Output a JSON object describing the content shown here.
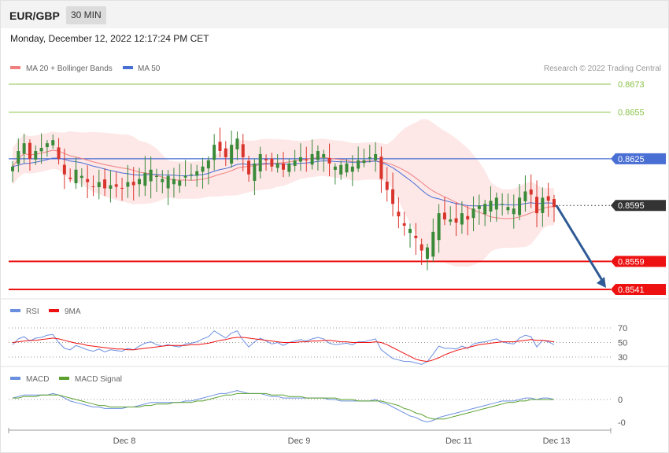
{
  "header": {
    "symbol": "EUR/GBP",
    "timeframe": "30 MIN",
    "datetime": "Monday, December 12, 2022 12:17:24 PM CET"
  },
  "legend": {
    "ma20_label": "MA 20 + Bollinger Bands",
    "ma50_label": "MA 50",
    "copyright": "Research © 2022 Trading Central"
  },
  "colors": {
    "bull": "#3a8a3a",
    "bear": "#d9342b",
    "ma20": "#f08080",
    "ma50": "#4a6fd4",
    "band_fill": "#fde3e3",
    "level_green": "#8bc34a",
    "level_blue": "#4a6fd4",
    "level_red": "#ee1111",
    "arrow": "#2e5a95",
    "rsi": "#6b8fdf",
    "rsi_ma": "#ee1111",
    "macd": "#6b8fdf",
    "macd_signal": "#5aa02c"
  },
  "levels": [
    {
      "value": 0.8673,
      "label": "0.8673",
      "kind": "green"
    },
    {
      "value": 0.8655,
      "label": "0.8655",
      "kind": "green"
    },
    {
      "value": 0.8625,
      "label": "0.8625",
      "kind": "blue"
    },
    {
      "value": 0.8595,
      "label": "0.8595",
      "kind": "current"
    },
    {
      "value": 0.8559,
      "label": "0.8559",
      "kind": "red"
    },
    {
      "value": 0.8541,
      "label": "0.8541",
      "kind": "red"
    }
  ],
  "forecast_arrow": {
    "from_price": 0.8595,
    "to_price": 0.8541
  },
  "rsi_panel": {
    "labels": {
      "rsi": "RSI",
      "ma": "9MA"
    },
    "ticks": [
      "70",
      "50",
      "30"
    ]
  },
  "macd_panel": {
    "labels": {
      "macd": "MACD",
      "signal": "MACD Signal"
    },
    "ticks": [
      "0",
      "-0"
    ]
  },
  "x_axis": {
    "labels": [
      "Dec 8",
      "Dec 9",
      "Dec 11",
      "Dec 13"
    ]
  },
  "chart_data": [
    {
      "type": "candlestick",
      "title": "EUR/GBP 30 MIN",
      "ylim": [
        0.8534,
        0.8688
      ],
      "series": [
        {
          "name": "MA 20 + Bollinger Bands"
        },
        {
          "name": "MA 50"
        }
      ],
      "price_path": [
        0.862,
        0.863,
        0.8635,
        0.8625,
        0.863,
        0.8632,
        0.8635,
        0.8637,
        0.8625,
        0.8615,
        0.8612,
        0.8618,
        0.8614,
        0.861,
        0.8607,
        0.861,
        0.8606,
        0.8608,
        0.8607,
        0.8606,
        0.861,
        0.8608,
        0.8612,
        0.8616,
        0.8618,
        0.8614,
        0.8612,
        0.8614,
        0.8612,
        0.8611,
        0.8614,
        0.8615,
        0.8617,
        0.862,
        0.8624,
        0.8634,
        0.863,
        0.8626,
        0.8634,
        0.8638,
        0.8626,
        0.8615,
        0.8622,
        0.8628,
        0.8624,
        0.862,
        0.8622,
        0.8618,
        0.8622,
        0.8624,
        0.8626,
        0.8624,
        0.8628,
        0.863,
        0.8628,
        0.8622,
        0.862,
        0.8621,
        0.8622,
        0.862,
        0.8624,
        0.8624,
        0.8626,
        0.8628,
        0.8612,
        0.8605,
        0.8596,
        0.8588,
        0.8582,
        0.858,
        0.8574,
        0.8566,
        0.8568,
        0.8578,
        0.859,
        0.8586,
        0.8586,
        0.8584,
        0.859,
        0.8586,
        0.8593,
        0.8595,
        0.8596,
        0.8598,
        0.86,
        0.8596,
        0.8594,
        0.8593,
        0.86,
        0.8604,
        0.8602,
        0.859,
        0.86,
        0.8598,
        0.8594
      ],
      "rsi": [
        47,
        55,
        58,
        52,
        56,
        57,
        60,
        61,
        50,
        42,
        40,
        46,
        43,
        40,
        38,
        41,
        37,
        40,
        39,
        38,
        42,
        40,
        45,
        49,
        51,
        47,
        45,
        47,
        45,
        44,
        48,
        49,
        51,
        55,
        58,
        66,
        61,
        56,
        63,
        66,
        53,
        44,
        51,
        56,
        52,
        48,
        50,
        46,
        50,
        52,
        54,
        52,
        55,
        57,
        55,
        49,
        47,
        48,
        49,
        47,
        51,
        51,
        53,
        55,
        40,
        34,
        28,
        26,
        24,
        24,
        22,
        20,
        24,
        34,
        45,
        42,
        42,
        41,
        45,
        42,
        48,
        50,
        51,
        53,
        55,
        51,
        49,
        48,
        56,
        60,
        58,
        44,
        53,
        51,
        47
      ],
      "rsi_ma": [
        50,
        51,
        52,
        53,
        53,
        54,
        55,
        56,
        55,
        53,
        51,
        49,
        48,
        46,
        45,
        44,
        43,
        42,
        41,
        41,
        40,
        40,
        41,
        42,
        43,
        44,
        45,
        46,
        46,
        46,
        46,
        47,
        47,
        48,
        49,
        51,
        53,
        54,
        56,
        57,
        57,
        56,
        55,
        54,
        53,
        52,
        51,
        50,
        50,
        50,
        51,
        51,
        52,
        52,
        53,
        53,
        52,
        51,
        51,
        50,
        50,
        50,
        50,
        51,
        50,
        47,
        43,
        39,
        35,
        31,
        27,
        25,
        24,
        26,
        29,
        33,
        36,
        39,
        41,
        43,
        45,
        47,
        48,
        49,
        50,
        51,
        51,
        51,
        52,
        53,
        54,
        53,
        53,
        52,
        51
      ],
      "macd": [
        0.1,
        0.2,
        0.3,
        0.3,
        0.3,
        0.3,
        0.3,
        0.4,
        0.3,
        0.1,
        -0.1,
        -0.2,
        -0.3,
        -0.4,
        -0.5,
        -0.5,
        -0.6,
        -0.6,
        -0.6,
        -0.6,
        -0.5,
        -0.5,
        -0.4,
        -0.3,
        -0.2,
        -0.2,
        -0.2,
        -0.2,
        -0.2,
        -0.2,
        -0.1,
        -0.1,
        0.0,
        0.1,
        0.2,
        0.3,
        0.4,
        0.4,
        0.5,
        0.6,
        0.5,
        0.4,
        0.4,
        0.4,
        0.3,
        0.2,
        0.2,
        0.1,
        0.1,
        0.1,
        0.1,
        0.1,
        0.1,
        0.1,
        0.1,
        0.0,
        0.0,
        -0.1,
        -0.1,
        -0.1,
        -0.1,
        -0.1,
        -0.1,
        0.0,
        -0.2,
        -0.3,
        -0.5,
        -0.7,
        -0.9,
        -1.1,
        -1.2,
        -1.4,
        -1.5,
        -1.4,
        -1.2,
        -1.1,
        -1.0,
        -0.9,
        -0.8,
        -0.7,
        -0.6,
        -0.5,
        -0.4,
        -0.3,
        -0.2,
        -0.1,
        -0.1,
        -0.1,
        0.0,
        0.1,
        0.1,
        0.0,
        0.1,
        0.1,
        0.0
      ],
      "macd_signal": [
        0.1,
        0.1,
        0.2,
        0.2,
        0.2,
        0.3,
        0.3,
        0.3,
        0.3,
        0.2,
        0.1,
        0.0,
        -0.1,
        -0.2,
        -0.3,
        -0.4,
        -0.4,
        -0.5,
        -0.5,
        -0.5,
        -0.5,
        -0.5,
        -0.5,
        -0.4,
        -0.4,
        -0.3,
        -0.3,
        -0.3,
        -0.2,
        -0.2,
        -0.2,
        -0.2,
        -0.1,
        -0.1,
        0.0,
        0.1,
        0.2,
        0.3,
        0.3,
        0.4,
        0.4,
        0.4,
        0.4,
        0.4,
        0.4,
        0.3,
        0.3,
        0.3,
        0.2,
        0.2,
        0.2,
        0.1,
        0.1,
        0.1,
        0.1,
        0.1,
        0.1,
        0.0,
        0.0,
        0.0,
        -0.1,
        -0.1,
        -0.1,
        -0.1,
        -0.1,
        -0.2,
        -0.3,
        -0.4,
        -0.6,
        -0.7,
        -0.9,
        -1.0,
        -1.2,
        -1.3,
        -1.3,
        -1.3,
        -1.2,
        -1.1,
        -1.0,
        -0.9,
        -0.8,
        -0.7,
        -0.6,
        -0.5,
        -0.4,
        -0.3,
        -0.2,
        -0.2,
        -0.1,
        -0.1,
        0.0,
        0.0,
        0.0,
        0.0,
        0.0
      ]
    }
  ]
}
